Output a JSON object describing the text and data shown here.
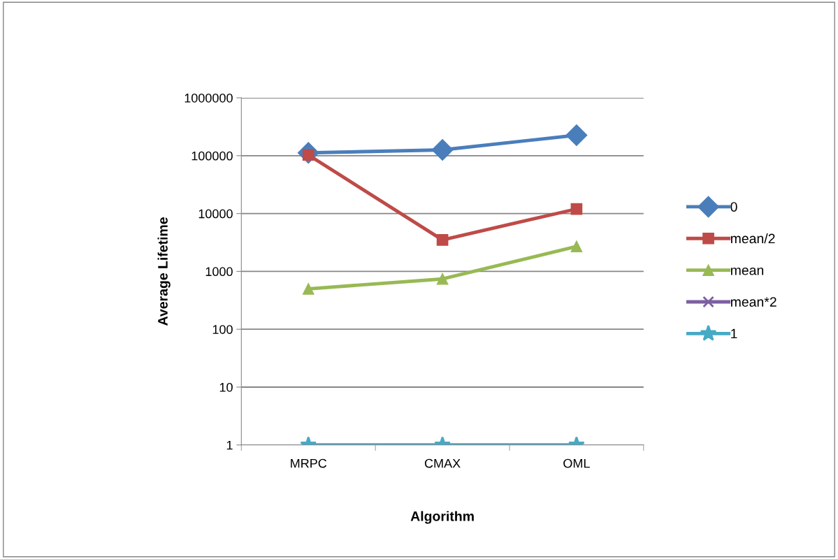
{
  "chart_data": {
    "type": "line",
    "xlabel": "Algorithm",
    "ylabel": "Average Lifetime",
    "categories": [
      "MRPC",
      "CMAX",
      "OML"
    ],
    "log": true,
    "ylim": [
      1,
      1000000
    ],
    "yticks": [
      1,
      10,
      100,
      1000,
      10000,
      100000,
      1000000
    ],
    "grid": "y",
    "legend": "right",
    "line_style": "solid",
    "series": [
      {
        "name": "0",
        "color": "#4a7ebb",
        "marker": "diamond",
        "values": [
          112000,
          126000,
          226000
        ]
      },
      {
        "name": "mean/2",
        "color": "#be4b48",
        "marker": "square",
        "values": [
          103000,
          3500,
          12000
        ]
      },
      {
        "name": "mean",
        "color": "#98b954",
        "marker": "triangle",
        "values": [
          500,
          740,
          2700
        ]
      },
      {
        "name": "mean*2",
        "color": "#7d60a0",
        "marker": "cross",
        "values": [
          null,
          null,
          null
        ]
      },
      {
        "name": "1",
        "color": "#46aac5",
        "marker": "star",
        "values": [
          1,
          1,
          1
        ]
      }
    ]
  }
}
